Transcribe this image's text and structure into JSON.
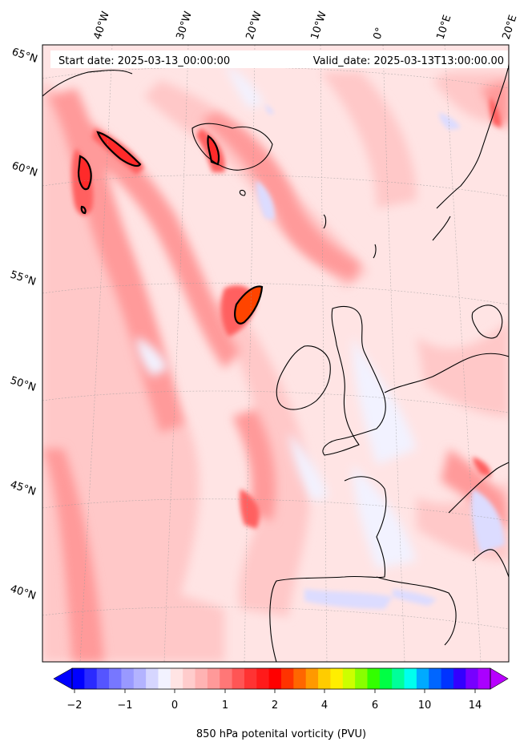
{
  "header": {
    "start_date": "Start date: 2025-03-13_00:00:00",
    "valid_date": "Valid_date: 2025-03-13T13:00:00.00"
  },
  "map": {
    "longitude_labels": [
      "40°W",
      "30°W",
      "20°W",
      "10°W",
      "0°",
      "10°E",
      "20°E"
    ],
    "latitude_labels": [
      "65°N",
      "60°N",
      "55°N",
      "50°N",
      "45°N",
      "40°N"
    ],
    "field_colors": {
      "background": "#ffe4e4",
      "light": "#ffc8c8",
      "medium": "#ff9a9a",
      "strong": "#ff6060",
      "intense": "#ff2a2a",
      "peak": "#ff4400",
      "negative": "#dcdcff",
      "neutral": "#f2f2ff"
    }
  },
  "colorbar": {
    "tick_labels": [
      "−2",
      "−1",
      "0",
      "1",
      "2",
      "4",
      "6",
      "10",
      "14"
    ],
    "label": "850 hPa potenital vorticity (PVU)",
    "colors": [
      "#0000ff",
      "#2a2aff",
      "#5555ff",
      "#7777ff",
      "#9999ff",
      "#b3b3ff",
      "#d6d6ff",
      "#f2f2ff",
      "#ffe4e4",
      "#ffcccc",
      "#ffb3b3",
      "#ff9999",
      "#ff7777",
      "#ff5555",
      "#ff3333",
      "#ff1a1a",
      "#ff0000",
      "#ff3300",
      "#ff6600",
      "#ff9900",
      "#ffcc00",
      "#ffee00",
      "#ccff00",
      "#88ff00",
      "#33ff00",
      "#00ff44",
      "#00ff99",
      "#00ffee",
      "#00aaff",
      "#0066ff",
      "#0033ff",
      "#3300ff",
      "#7700ff",
      "#aa00ff"
    ],
    "low_extend_color": "#0000ff",
    "high_extend_color": "#b800ff"
  }
}
